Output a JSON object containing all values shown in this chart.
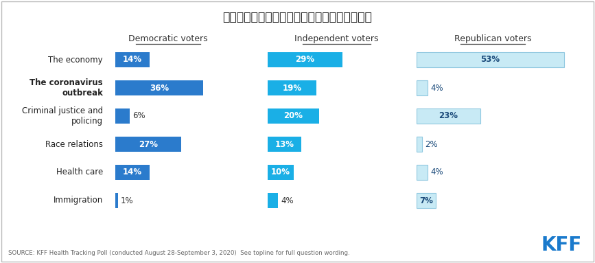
{
  "title": "図１：大統領選挙における党派別の最重要争点",
  "categories": [
    "The economy",
    "The coronavirus\noutbreak",
    "Criminal justice and\npolicing",
    "Race relations",
    "Health care",
    "Immigration"
  ],
  "categories_bold": [
    false,
    true,
    false,
    false,
    false,
    false
  ],
  "group_labels": [
    "Democratic voters",
    "Independent voters",
    "Republican voters"
  ],
  "democratic": [
    14,
    36,
    6,
    27,
    14,
    1
  ],
  "independent": [
    29,
    19,
    20,
    13,
    10,
    4
  ],
  "republican": [
    53,
    4,
    23,
    2,
    4,
    7
  ],
  "dem_color": "#2B7BCC",
  "ind_color": "#1AAFE6",
  "rep_color": "#C8EAF5",
  "rep_text_color": "#1A4A7A",
  "rep_border_color": "#90C8E0",
  "source_text": "SOURCE: KFF Health Tracking Poll (conducted August 28-September 3, 2020)  See topline for full question wording.",
  "kff_color": "#1A7ACC",
  "background_color": "#FFFFFF"
}
